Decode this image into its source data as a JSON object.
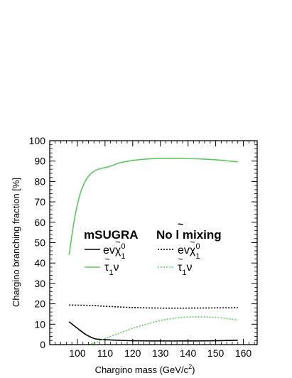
{
  "chart_data": {
    "type": "line",
    "xlabel": "Chargino mass (GeV/c",
    "xlabel_sup": "2",
    "xlabel_end": ")",
    "ylabel": "Chargino branching fraction [%]",
    "xlim": [
      90,
      165
    ],
    "ylim": [
      0,
      100
    ],
    "x_ticks": [
      100,
      110,
      120,
      130,
      140,
      150,
      160
    ],
    "x_tick_labels": [
      "100",
      "110",
      "120",
      "130",
      "140",
      "150",
      "160"
    ],
    "y_ticks": [
      0,
      10,
      20,
      30,
      40,
      50,
      60,
      70,
      80,
      90,
      100
    ],
    "y_tick_labels": [
      "0",
      "10",
      "20",
      "30",
      "40",
      "50",
      "60",
      "70",
      "80",
      "90",
      "100"
    ],
    "legend": {
      "groups": [
        {
          "title": "mSUGRA",
          "entries": [
            {
              "label_pre": "ev",
              "label_sym": "χ",
              "sub": "1",
              "sup": "0",
              "series": 0
            },
            {
              "label_pre": "",
              "label_sym": "τ",
              "sub": "1",
              "sup": "",
              "post": "ν",
              "series": 1
            }
          ]
        },
        {
          "title": "No",
          "title_sym": "l",
          "title_post": "mixing",
          "entries": [
            {
              "label_pre": "ev",
              "label_sym": "χ",
              "sub": "1",
              "sup": "0",
              "series": 2
            },
            {
              "label_pre": "",
              "label_sym": "τ",
              "sub": "1",
              "sup": "",
              "post": "ν",
              "series": 3
            }
          ]
        }
      ]
    },
    "series": [
      {
        "key": "msugra-e-nu-chi",
        "color": "#000000",
        "dash": "solid",
        "x": [
          97,
          100,
          103,
          106,
          108,
          110,
          115,
          120,
          130,
          140,
          150,
          158
        ],
        "y": [
          11.2,
          8,
          5,
          3,
          2.6,
          2.4,
          2.1,
          1.9,
          1.8,
          1.8,
          1.9,
          2.1
        ]
      },
      {
        "key": "msugra-stau-nu",
        "color": "#5cc75c",
        "dash": "solid",
        "x": [
          97,
          99,
          101,
          103,
          105,
          107,
          109,
          112,
          115,
          120,
          125,
          130,
          135,
          140,
          145,
          150,
          155,
          158
        ],
        "y": [
          44,
          62,
          74,
          80.5,
          84,
          85.7,
          86.5,
          87.5,
          89,
          90.3,
          91.0,
          91.3,
          91.3,
          91.2,
          91.0,
          90.6,
          90.0,
          89.6
        ]
      },
      {
        "key": "nomix-e-nu-chi",
        "color": "#000000",
        "dash": "dotted",
        "x": [
          97,
          105,
          110,
          120,
          130,
          140,
          150,
          158
        ],
        "y": [
          19.4,
          19.2,
          18.8,
          18.2,
          17.9,
          17.9,
          18.0,
          18.1
        ]
      },
      {
        "key": "nomix-stau-nu",
        "color": "#5cc75c",
        "dash": "dotted",
        "x": [
          104,
          107,
          110,
          115,
          120,
          125,
          130,
          135,
          140,
          145,
          150,
          155,
          158
        ],
        "y": [
          0,
          1.2,
          3,
          5.5,
          8,
          10,
          11.8,
          12.9,
          13.5,
          13.6,
          13.3,
          12.6,
          12.0
        ]
      }
    ]
  }
}
